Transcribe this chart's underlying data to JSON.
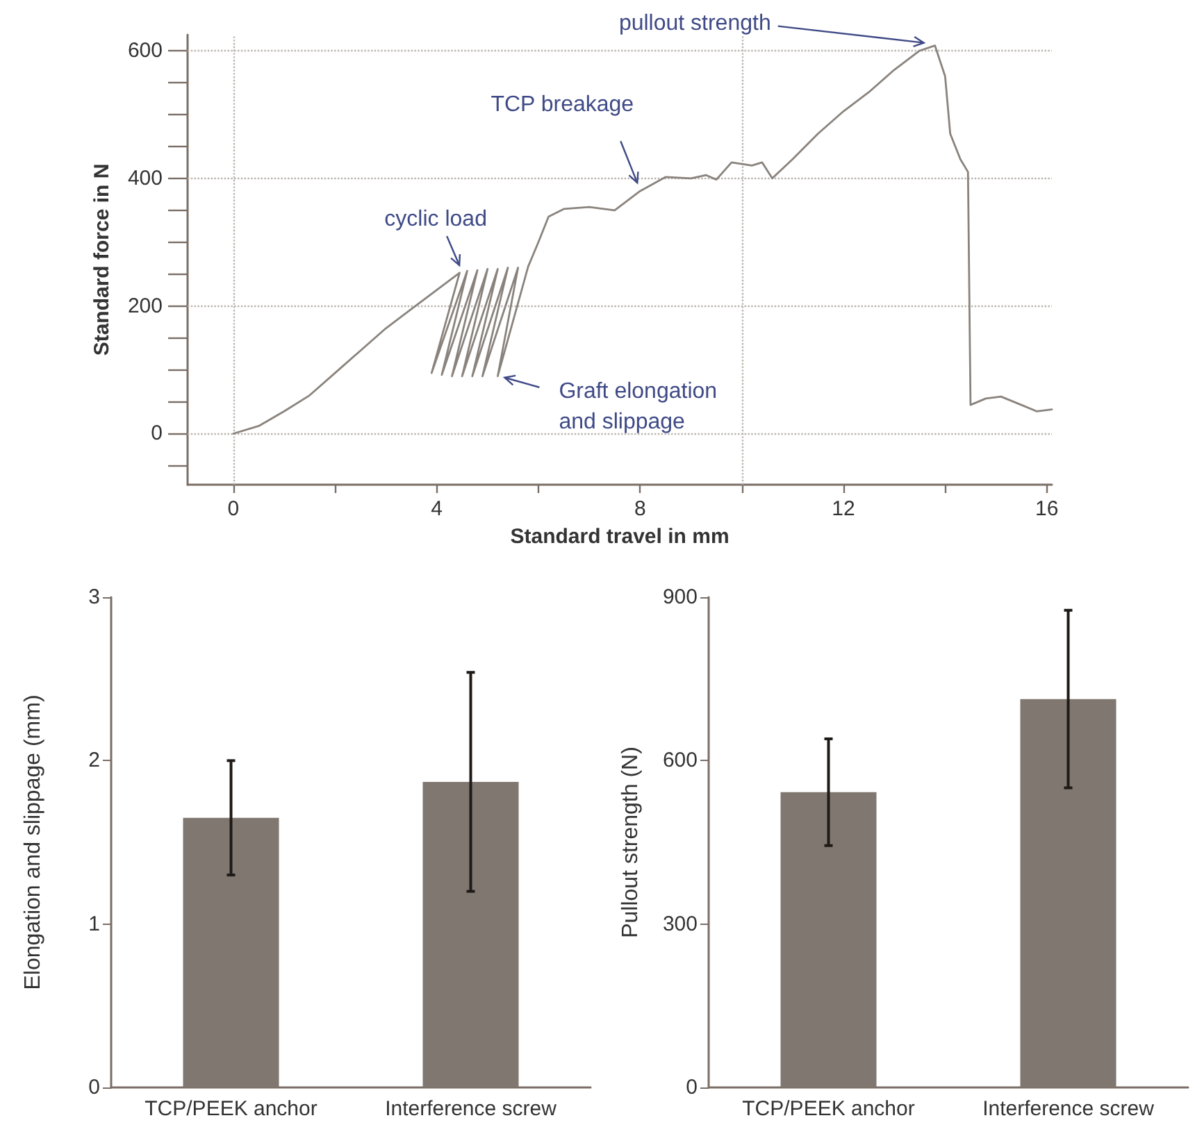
{
  "chart_data": [
    {
      "type": "line",
      "xlabel": "Standard travel in mm",
      "ylabel": "Standard force in N",
      "xlim": [
        -0.9,
        16.1
      ],
      "ylim": [
        -80,
        625
      ],
      "xticks": [
        0,
        {
          "value": 2,
          "label": null
        },
        4,
        {
          "value": 6,
          "label": null
        },
        8,
        {
          "value": 10,
          "label": null
        },
        12,
        {
          "value": 14,
          "label": null
        },
        16
      ],
      "yticks": [
        {
          "value": -50,
          "label": null
        },
        0,
        {
          "value": 50,
          "label": null
        },
        {
          "value": 100,
          "label": null
        },
        {
          "value": 150,
          "label": null
        },
        200,
        {
          "value": 250,
          "label": null
        },
        {
          "value": 300,
          "label": null
        },
        {
          "value": 350,
          "label": null
        },
        400,
        {
          "value": 450,
          "label": null
        },
        {
          "value": 500,
          "label": null
        },
        {
          "value": 550,
          "label": null
        },
        600
      ],
      "marker": "none",
      "line_style": "solid",
      "series": [
        {
          "color": "#8a837d",
          "x": [
            0,
            0.5,
            1,
            1.5,
            2,
            2.5,
            3,
            3.5,
            4,
            4.45,
            3.9,
            4.6,
            4.1,
            4.8,
            4.3,
            5.0,
            4.5,
            5.2,
            4.7,
            5.4,
            4.9,
            5.6,
            5.2,
            5.8,
            6,
            6.2,
            6.5,
            7,
            7.5,
            8,
            8.5,
            9,
            9.3,
            9.5,
            9.8,
            10.2,
            10.4,
            10.6,
            11,
            11.5,
            12,
            12.5,
            13,
            13.5,
            13.8,
            14.0,
            14.1,
            14.3,
            14.45,
            14.5,
            14.8,
            15.1,
            15.5,
            15.8,
            16.1
          ],
          "values": [
            0,
            12,
            35,
            60,
            95,
            130,
            165,
            195,
            225,
            252,
            95,
            255,
            92,
            256,
            90,
            258,
            90,
            258,
            90,
            260,
            90,
            260,
            90,
            262,
            300,
            340,
            352,
            355,
            350,
            380,
            402,
            400,
            405,
            398,
            425,
            420,
            425,
            400,
            430,
            470,
            505,
            535,
            570,
            600,
            608,
            560,
            470,
            430,
            410,
            45,
            55,
            58,
            45,
            35,
            38
          ]
        }
      ],
      "ref_lines": [
        {
          "axis": "y",
          "value": 0,
          "line_style": "dotted"
        },
        {
          "axis": "y",
          "value": 200,
          "line_style": "dotted"
        },
        {
          "axis": "y",
          "value": 400,
          "line_style": "dotted"
        },
        {
          "axis": "y",
          "value": 600,
          "line_style": "dotted"
        },
        {
          "axis": "x",
          "value": 0,
          "line_style": "dotted"
        },
        {
          "axis": "x",
          "value": 10,
          "line_style": "dotted"
        }
      ],
      "annotations": [
        {
          "text": "cyclic load",
          "x": 4.5,
          "y": 255
        },
        {
          "text": "TCP breakage",
          "x": 8,
          "y": 380
        },
        {
          "text": "pullout strength",
          "x": 13.8,
          "y": 608
        },
        {
          "text": "Graft elongation and slippage",
          "x": 5.2,
          "y": 90
        }
      ]
    },
    {
      "type": "bar",
      "ylabel": "Elongation and slippage (mm)",
      "categories": [
        "TCP/PEEK anchor",
        "Interference screw"
      ],
      "values": [
        1.65,
        1.87
      ],
      "errors": [
        0.35,
        0.67
      ],
      "color": "#7f7770",
      "ylim": [
        0,
        3
      ],
      "yticks": [
        0,
        1,
        2,
        3
      ]
    },
    {
      "type": "bar",
      "ylabel": "Pullout strength (N)",
      "categories": [
        "TCP/PEEK anchor",
        "Interference screw"
      ],
      "values": [
        542,
        713
      ],
      "errors": [
        98,
        163
      ],
      "color": "#7f7770",
      "ylim": [
        0,
        900
      ],
      "yticks": [
        0,
        300,
        600,
        900
      ]
    }
  ]
}
